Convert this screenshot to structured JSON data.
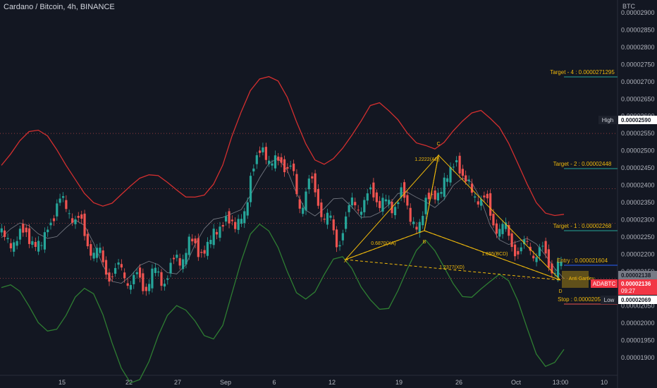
{
  "header": {
    "title": "Cardano / Bitcoin, 4h, BINANCE",
    "price_unit": "BTC"
  },
  "chart_data": {
    "type": "candlestick",
    "symbol": "ADABTC",
    "timeframe": "4h",
    "exchange": "BINANCE",
    "ylim": [
      1.89e-05,
      2.92e-05
    ],
    "y_ticks": [
      "0.00002900",
      "0.00002850",
      "0.00002800",
      "0.00002750",
      "0.00002700",
      "0.00002650",
      "0.00002600",
      "0.00002550",
      "0.00002500",
      "0.00002450",
      "0.00002400",
      "0.00002350",
      "0.00002300",
      "0.00002250",
      "0.00002200",
      "0.00002150",
      "0.00002100",
      "0.00002050",
      "0.00002000",
      "0.00001950",
      "0.00001900"
    ],
    "x_ticks": [
      "15",
      "22",
      "27",
      "Sep",
      "6",
      "12",
      "19",
      "26",
      "Oct",
      "13:00",
      "10"
    ],
    "grid": false,
    "price_series_closes": [
      2.255e-05,
      2.232e-05,
      2.262e-05,
      2.241e-05,
      2.22e-05,
      2.3e-05,
      2.35e-05,
      2.332e-05,
      2.29e-05,
      2.24e-05,
      2.2e-05,
      2.16e-05,
      2.14e-05,
      2.15e-05,
      2.12e-05,
      2.112e-05,
      2.14e-05,
      2.125e-05,
      2.16e-05,
      2.18e-05,
      2.24e-05,
      2.2e-05,
      2.23e-05,
      2.26e-05,
      2.31e-05,
      2.27e-05,
      2.33e-05,
      2.44e-05,
      2.52e-05,
      2.45e-05,
      2.48e-05,
      2.44e-05,
      2.35e-05,
      2.4e-05,
      2.36e-05,
      2.3e-05,
      2.24e-05,
      2.29e-05,
      2.36e-05,
      2.34e-05,
      2.38e-05,
      2.35e-05,
      2.33e-05,
      2.385e-05,
      2.3e-05,
      2.29e-05,
      2.36e-05,
      2.38e-05,
      2.415e-05,
      2.48e-05,
      2.4e-05,
      2.38e-05,
      2.35e-05,
      2.3e-05,
      2.27e-05,
      2.24e-05,
      2.2e-05,
      2.23e-05,
      2.2e-05,
      2.18e-05,
      2.16e-05,
      2.136e-05
    ],
    "overlay_lines": [
      {
        "name": "red",
        "color": "#d32f2f"
      },
      {
        "name": "gray",
        "color": "#9598a1"
      },
      {
        "name": "green",
        "color": "#2e7d32"
      }
    ],
    "horizontal_lines": [
      {
        "label": "Target - 4",
        "value": "0.0000271295"
      },
      {
        "label": "Target - 2",
        "value": "0.00002448"
      },
      {
        "label": "Target - 1",
        "value": "0.00002268"
      },
      {
        "label": "Entry",
        "value": "0.000021604"
      },
      {
        "label": "Stop",
        "value": "0.000020528"
      }
    ],
    "harmonic_pattern": {
      "name": "Anti Gartley",
      "points": [
        "X",
        "A",
        "B",
        "C",
        "D"
      ],
      "ratios": [
        "0.6870(XA)",
        "1.2222(AB)",
        "1.655(BCD)",
        "1.2377(XD)"
      ]
    },
    "price_labels": {
      "high_label": "High",
      "high_value": "0.00002590",
      "current_value_1": "0.00002138",
      "symbol_tag": "ADABTC",
      "current_value_2": "0.00002136",
      "countdown": "09:27",
      "low_label": "Low",
      "low_value": "0.00002069"
    }
  },
  "colors": {
    "background": "#131722",
    "up": "#26a69a",
    "down": "#ef5350",
    "target_line": "#f0b90b",
    "stop_line": "#ef5350",
    "pattern": "#f0b90b"
  }
}
